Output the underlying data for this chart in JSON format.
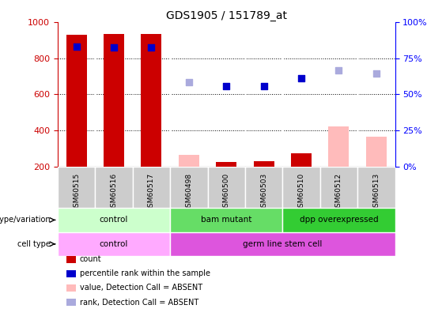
{
  "title": "GDS1905 / 151789_at",
  "samples": [
    "GSM60515",
    "GSM60516",
    "GSM60517",
    "GSM60498",
    "GSM60500",
    "GSM60503",
    "GSM60510",
    "GSM60512",
    "GSM60513"
  ],
  "count_values": [
    930,
    935,
    935,
    null,
    225,
    230,
    275,
    null,
    null
  ],
  "count_absent_values": [
    null,
    null,
    null,
    265,
    null,
    null,
    null,
    420,
    365
  ],
  "percentile_values": [
    865,
    862,
    860,
    null,
    645,
    645,
    688,
    null,
    null
  ],
  "percentile_absent_values": [
    null,
    null,
    null,
    668,
    null,
    null,
    null,
    735,
    718
  ],
  "ylim": [
    200,
    1000
  ],
  "y2lim": [
    0,
    100
  ],
  "y_ticks": [
    200,
    400,
    600,
    800,
    1000
  ],
  "y2_ticks": [
    0,
    25,
    50,
    75,
    100
  ],
  "genotype_groups": [
    {
      "label": "control",
      "start": 0,
      "end": 3,
      "color": "#ccffcc"
    },
    {
      "label": "bam mutant",
      "start": 3,
      "end": 6,
      "color": "#66dd66"
    },
    {
      "label": "dpp overexpressed",
      "start": 6,
      "end": 9,
      "color": "#33cc33"
    }
  ],
  "cell_type_groups": [
    {
      "label": "control",
      "start": 0,
      "end": 3,
      "color": "#ffaaff"
    },
    {
      "label": "germ line stem cell",
      "start": 3,
      "end": 9,
      "color": "#dd55dd"
    }
  ],
  "count_color": "#cc0000",
  "count_absent_color": "#ffbbbb",
  "percentile_color": "#0000cc",
  "percentile_absent_color": "#aaaadd",
  "bar_width": 0.55,
  "marker_size": 40,
  "grid_color": "black",
  "bg_plot_color": "#ffffff",
  "bg_label_color": "#cccccc",
  "legend_items": [
    {
      "label": "count",
      "color": "#cc0000"
    },
    {
      "label": "percentile rank within the sample",
      "color": "#0000cc"
    },
    {
      "label": "value, Detection Call = ABSENT",
      "color": "#ffbbbb"
    },
    {
      "label": "rank, Detection Call = ABSENT",
      "color": "#aaaadd"
    }
  ]
}
